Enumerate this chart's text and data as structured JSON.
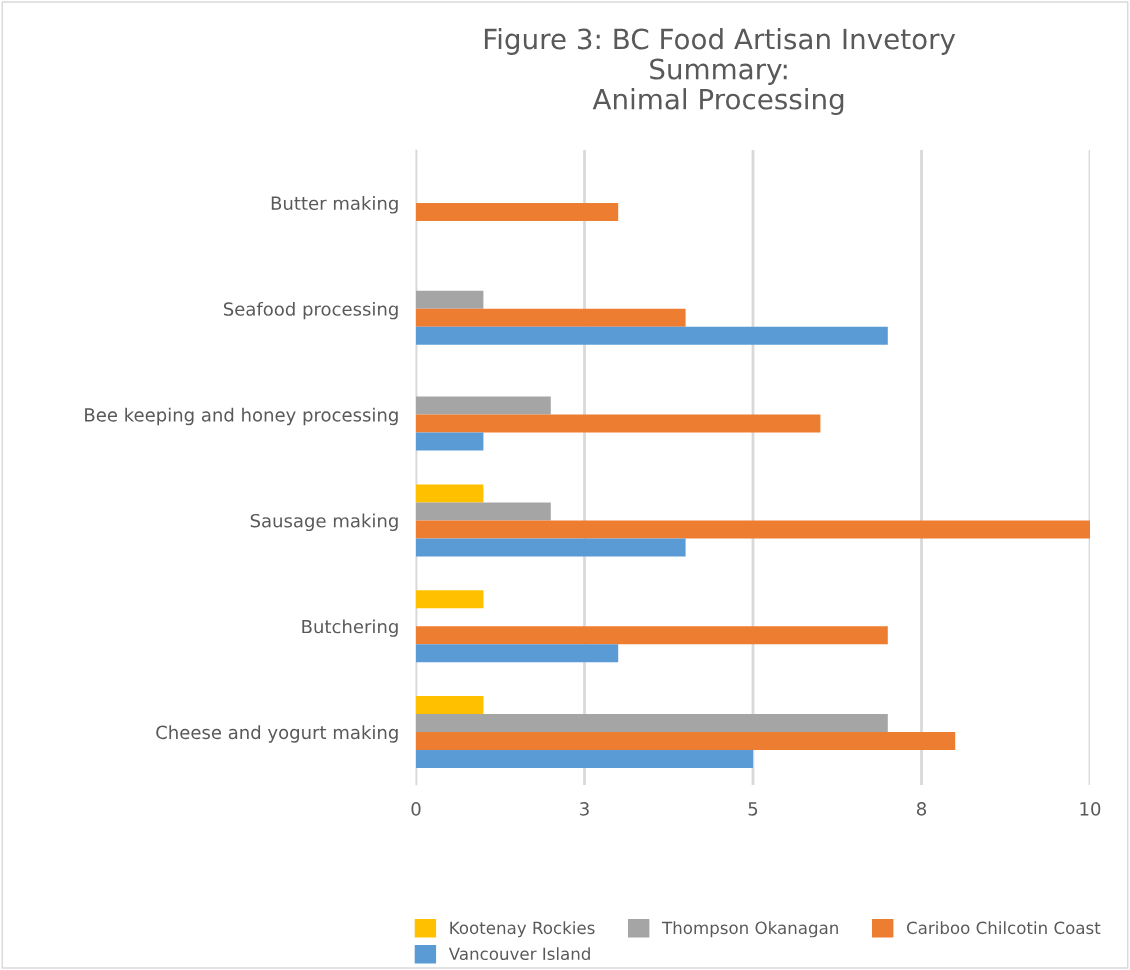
{
  "chart_data": {
    "type": "bar",
    "orientation": "horizontal",
    "title": "Figure 3: BC Food Artisan Invetory\nSummary:\nAnimal Processing",
    "categories": [
      "Butter making",
      "Seafood processing",
      "Bee keeping and honey processing",
      "Sausage making",
      "Butchering",
      "Cheese and yogurt making"
    ],
    "series": [
      {
        "name": "Kootenay Rockies",
        "color": "#ffc000",
        "values": [
          null,
          null,
          null,
          1,
          1,
          1
        ]
      },
      {
        "name": "Thompson Okanagan",
        "color": "#a5a5a5",
        "values": [
          null,
          1,
          2,
          2,
          null,
          7
        ]
      },
      {
        "name": "Cariboo Chilcotin Coast",
        "color": "#ed7d31",
        "values": [
          3,
          4,
          6,
          10,
          7,
          8
        ]
      },
      {
        "name": "Vancouver Island",
        "color": "#5b9bd5",
        "values": [
          null,
          7,
          1,
          4,
          3,
          5
        ]
      }
    ],
    "xlim": [
      0,
      10
    ],
    "xticks": [
      0,
      {
        "value": 2.5,
        "label": "3"
      },
      5,
      {
        "value": 7.5,
        "label": "8"
      },
      10
    ],
    "grid": "x",
    "legend": "bottom"
  }
}
